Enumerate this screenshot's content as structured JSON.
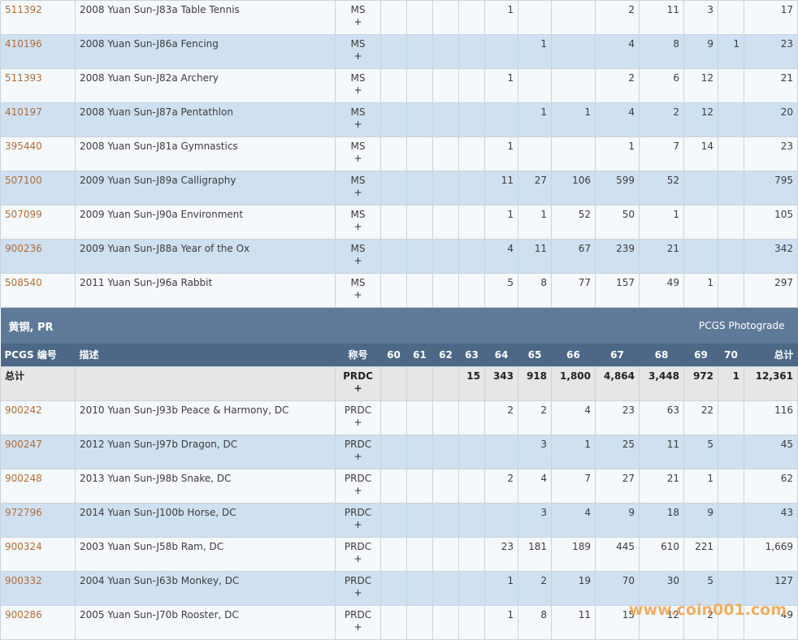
{
  "section": {
    "title": "黄铜, PR",
    "right_link": "PCGS Photograde"
  },
  "headers": [
    "PCGS 编号",
    "描述",
    "称号",
    "60",
    "61",
    "62",
    "63",
    "64",
    "65",
    "66",
    "67",
    "68",
    "69",
    "70",
    "总计"
  ],
  "top_rows": [
    {
      "code": "511392",
      "desc": "2008 Yuan Sun-J83a Table Tennis",
      "des": "MS",
      "plus": "+",
      "g": [
        "",
        "",
        "",
        "",
        "1",
        "",
        "",
        "2",
        "11",
        "3",
        ""
      ],
      "total": "17"
    },
    {
      "code": "410196",
      "desc": "2008 Yuan Sun-J86a Fencing",
      "des": "MS",
      "plus": "+",
      "g": [
        "",
        "",
        "",
        "",
        "",
        "1",
        "",
        "4",
        "8",
        "9",
        "1"
      ],
      "total": "23"
    },
    {
      "code": "511393",
      "desc": "2008 Yuan Sun-J82a Archery",
      "des": "MS",
      "plus": "+",
      "g": [
        "",
        "",
        "",
        "",
        "1",
        "",
        "",
        "2",
        "6",
        "12",
        ""
      ],
      "total": "21"
    },
    {
      "code": "410197",
      "desc": "2008 Yuan Sun-J87a Pentathlon",
      "des": "MS",
      "plus": "+",
      "g": [
        "",
        "",
        "",
        "",
        "",
        "1",
        "1",
        "4",
        "2",
        "12",
        ""
      ],
      "total": "20"
    },
    {
      "code": "395440",
      "desc": "2008 Yuan Sun-J81a Gymnastics",
      "des": "MS",
      "plus": "+",
      "g": [
        "",
        "",
        "",
        "",
        "1",
        "",
        "",
        "1",
        "7",
        "14",
        ""
      ],
      "total": "23"
    },
    {
      "code": "507100",
      "desc": "2009 Yuan Sun-J89a Calligraphy",
      "des": "MS",
      "plus": "+",
      "g": [
        "",
        "",
        "",
        "",
        "11",
        "27",
        "106",
        "599",
        "52",
        "",
        ""
      ],
      "total": "795"
    },
    {
      "code": "507099",
      "desc": "2009 Yuan Sun-J90a Environment",
      "des": "MS",
      "plus": "+",
      "g": [
        "",
        "",
        "",
        "",
        "1",
        "1",
        "52",
        "50",
        "1",
        "",
        ""
      ],
      "total": "105"
    },
    {
      "code": "900236",
      "desc": "2009 Yuan Sun-J88a Year of the Ox",
      "des": "MS",
      "plus": "+",
      "g": [
        "",
        "",
        "",
        "",
        "4",
        "11",
        "67",
        "239",
        "21",
        "",
        ""
      ],
      "total": "342"
    },
    {
      "code": "508540",
      "desc": "2011 Yuan Sun-J96a Rabbit",
      "des": "MS",
      "plus": "+",
      "g": [
        "",
        "",
        "",
        "",
        "5",
        "8",
        "77",
        "157",
        "49",
        "1",
        ""
      ],
      "total": "297"
    }
  ],
  "total_row": {
    "label": "总计",
    "des": "PRDC",
    "plus": "+",
    "g": [
      "",
      "",
      "",
      "15",
      "343",
      "918",
      "1,800",
      "4,864",
      "3,448",
      "972",
      "1"
    ],
    "total": "12,361"
  },
  "bottom_rows": [
    {
      "code": "900242",
      "desc": "2010 Yuan Sun-J93b Peace & Harmony, DC",
      "des": "PRDC",
      "plus": "+",
      "g": [
        "",
        "",
        "",
        "",
        "2",
        "2",
        "4",
        "23",
        "63",
        "22",
        ""
      ],
      "total": "116"
    },
    {
      "code": "900247",
      "desc": "2012 Yuan Sun-J97b Dragon, DC",
      "des": "PRDC",
      "plus": "+",
      "g": [
        "",
        "",
        "",
        "",
        "",
        "3",
        "1",
        "25",
        "11",
        "5",
        ""
      ],
      "total": "45"
    },
    {
      "code": "900248",
      "desc": "2013 Yuan Sun-J98b Snake, DC",
      "des": "PRDC",
      "plus": "+",
      "g": [
        "",
        "",
        "",
        "",
        "2",
        "4",
        "7",
        "27",
        "21",
        "1",
        ""
      ],
      "total": "62"
    },
    {
      "code": "972796",
      "desc": "2014 Yuan Sun-J100b Horse, DC",
      "des": "PRDC",
      "plus": "+",
      "g": [
        "",
        "",
        "",
        "",
        "",
        "3",
        "4",
        "9",
        "18",
        "9",
        ""
      ],
      "total": "43"
    },
    {
      "code": "900324",
      "desc": "2003 Yuan Sun-J58b Ram, DC",
      "des": "PRDC",
      "plus": "+",
      "g": [
        "",
        "",
        "",
        "",
        "23",
        "181",
        "189",
        "445",
        "610",
        "221",
        ""
      ],
      "total": "1,669"
    },
    {
      "code": "900332",
      "desc": "2004 Yuan Sun-J63b Monkey, DC",
      "des": "PRDC",
      "plus": "+",
      "g": [
        "",
        "",
        "",
        "",
        "1",
        "2",
        "19",
        "70",
        "30",
        "5",
        ""
      ],
      "total": "127"
    },
    {
      "code": "900286",
      "desc": "2005 Yuan Sun-J70b Rooster, DC",
      "des": "PRDC",
      "plus": "+",
      "g": [
        "",
        "",
        "",
        "",
        "1",
        "8",
        "11",
        "15",
        "12",
        "2",
        ""
      ],
      "total": "49"
    }
  ],
  "watermark": "www.coin001.com",
  "colors": {
    "link": "#b06c37",
    "section_bg": "#5f7a98",
    "header_bg": "#4c6886",
    "row_alt": "#cfe0f0",
    "row": "#f5f9fc",
    "total_bg": "#e6e6e6"
  }
}
